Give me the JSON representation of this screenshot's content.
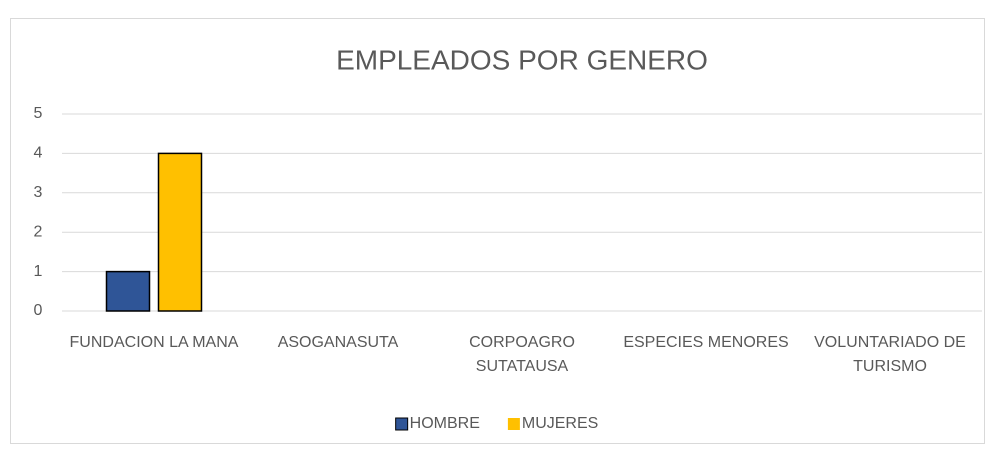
{
  "chart_data": {
    "type": "bar",
    "title": "EMPLEADOS POR GENERO",
    "categories": [
      "FUNDACION LA MANA",
      "ASOGANASUTA",
      "CORPOAGRO SUTATAUSA",
      "ESPECIES MENORES",
      "VOLUNTARIADO DE TURISMO"
    ],
    "series": [
      {
        "name": "HOMBRE",
        "color": "#2f5597",
        "values": [
          1,
          null,
          null,
          null,
          null
        ]
      },
      {
        "name": "MUJERES",
        "color": "#ffc000",
        "values": [
          4,
          null,
          null,
          null,
          null
        ]
      }
    ],
    "ylim": [
      0,
      5
    ],
    "yticks": [
      0,
      1,
      2,
      3,
      4,
      5
    ],
    "grid": true,
    "legend": "bottom"
  }
}
